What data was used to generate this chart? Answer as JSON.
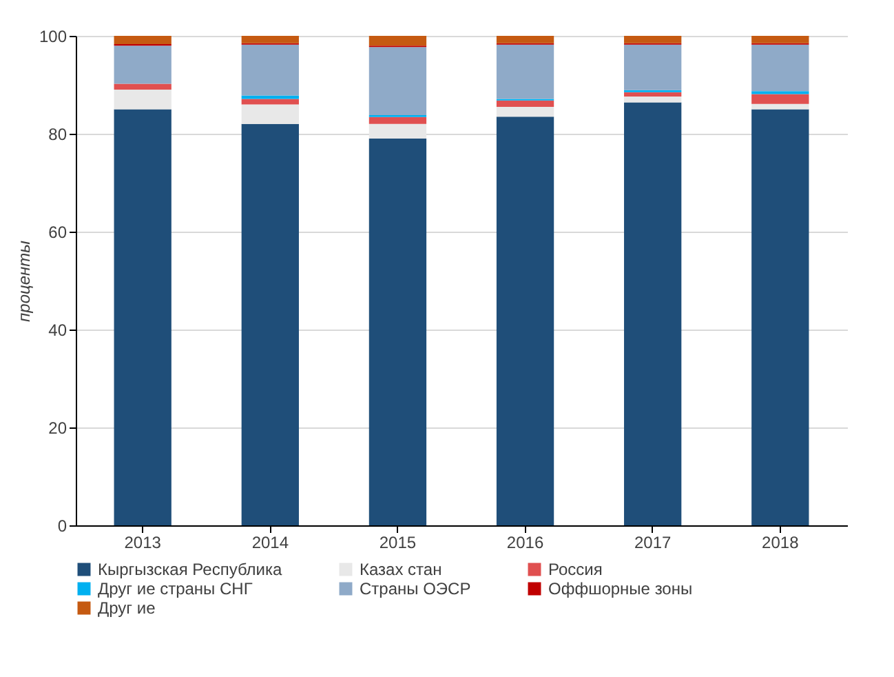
{
  "chart_data": {
    "type": "bar",
    "stacked": true,
    "ylabel": "проценты",
    "categories": [
      "2013",
      "2014",
      "2015",
      "2016",
      "2017",
      "2018"
    ],
    "series": [
      {
        "name": "Кыргызская Республика",
        "color": "#1f4e79",
        "values": [
          85,
          82,
          79,
          83.5,
          86.4,
          85
        ]
      },
      {
        "name": "Казах стан",
        "color": "#e8e8e8",
        "values": [
          4,
          4,
          3,
          2,
          1.2,
          1.1
        ]
      },
      {
        "name": "Россия",
        "color": "#e05050",
        "values": [
          1.2,
          1.1,
          1.4,
          1.3,
          0.9,
          2
        ]
      },
      {
        "name": "Друг ие страны СНГ",
        "color": "#00b0f0",
        "values": [
          0,
          0.7,
          0.4,
          0.3,
          0.4,
          0.6
        ]
      },
      {
        "name": "Страны ОЭСР",
        "color": "#8faac8",
        "values": [
          7.8,
          10.4,
          13.9,
          11.1,
          9.3,
          9.5
        ]
      },
      {
        "name": "Оффшорные зоны",
        "color": "#c00000",
        "values": [
          0.3,
          0.3,
          0.3,
          0.3,
          0.3,
          0.3
        ]
      },
      {
        "name": "Друг ие",
        "color": "#c55a11",
        "values": [
          1.7,
          1.5,
          2,
          1.5,
          1.5,
          1.5
        ]
      }
    ],
    "ylim": [
      0,
      100
    ],
    "yticks": [
      0,
      20,
      40,
      60,
      80,
      100
    ],
    "grid": "y",
    "legend": "bottom"
  }
}
